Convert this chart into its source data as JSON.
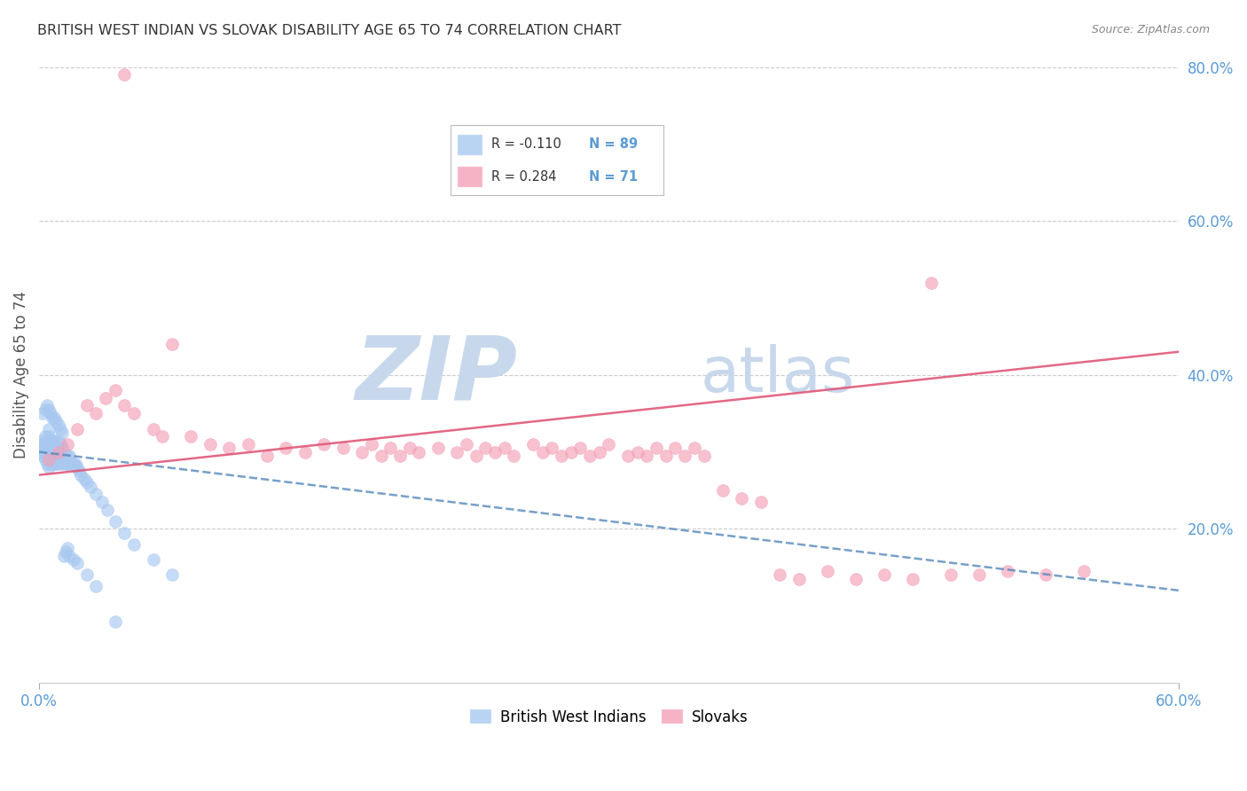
{
  "title": "BRITISH WEST INDIAN VS SLOVAK DISABILITY AGE 65 TO 74 CORRELATION CHART",
  "source": "Source: ZipAtlas.com",
  "ylabel": "Disability Age 65 to 74",
  "xmin": 0.0,
  "xmax": 0.6,
  "ymin": 0.0,
  "ymax": 0.8,
  "right_yticks": [
    0.2,
    0.4,
    0.6,
    0.8
  ],
  "right_yticklabels": [
    "20.0%",
    "40.0%",
    "60.0%",
    "80.0%"
  ],
  "xtick_positions": [
    0.0,
    0.6
  ],
  "xtick_labels": [
    "0.0%",
    "60.0%"
  ],
  "blue_color": "#A8C8F0",
  "pink_color": "#F4A0B8",
  "blue_line_color": "#5588BB",
  "pink_line_color": "#E05878",
  "title_color": "#333333",
  "axis_label_color": "#555555",
  "tick_label_color": "#5B9BD5",
  "grid_color": "#CCCCCC",
  "watermark_zip": "ZIP",
  "watermark_atlas": "atlas",
  "watermark_color": "#C8D8EC",
  "legend_label_blue": "British West Indians",
  "legend_label_pink": "Slovaks",
  "blue_R": -0.11,
  "blue_N": 89,
  "pink_R": 0.284,
  "pink_N": 71,
  "blue_line_x0": 0.0,
  "blue_line_y0": 0.3,
  "blue_line_x1": 0.6,
  "blue_line_y1": 0.12,
  "pink_line_x0": 0.0,
  "pink_line_y0": 0.27,
  "pink_line_x1": 0.6,
  "pink_line_y1": 0.43,
  "blue_scatter_x": [
    0.001,
    0.001,
    0.002,
    0.002,
    0.002,
    0.003,
    0.003,
    0.003,
    0.003,
    0.004,
    0.004,
    0.004,
    0.004,
    0.005,
    0.005,
    0.005,
    0.005,
    0.005,
    0.005,
    0.006,
    0.006,
    0.006,
    0.006,
    0.007,
    0.007,
    0.007,
    0.007,
    0.008,
    0.008,
    0.008,
    0.008,
    0.009,
    0.009,
    0.009,
    0.01,
    0.01,
    0.01,
    0.01,
    0.011,
    0.011,
    0.011,
    0.012,
    0.012,
    0.012,
    0.013,
    0.013,
    0.014,
    0.014,
    0.015,
    0.015,
    0.016,
    0.016,
    0.017,
    0.018,
    0.019,
    0.02,
    0.021,
    0.022,
    0.024,
    0.025,
    0.027,
    0.03,
    0.033,
    0.036,
    0.04,
    0.045,
    0.05,
    0.06,
    0.07,
    0.002,
    0.003,
    0.004,
    0.005,
    0.006,
    0.007,
    0.008,
    0.009,
    0.01,
    0.011,
    0.012,
    0.013,
    0.014,
    0.015,
    0.016,
    0.018,
    0.02,
    0.025,
    0.03,
    0.04
  ],
  "blue_scatter_y": [
    0.3,
    0.31,
    0.295,
    0.305,
    0.315,
    0.29,
    0.3,
    0.31,
    0.32,
    0.285,
    0.295,
    0.305,
    0.315,
    0.28,
    0.29,
    0.3,
    0.31,
    0.32,
    0.33,
    0.285,
    0.295,
    0.305,
    0.315,
    0.285,
    0.295,
    0.305,
    0.315,
    0.285,
    0.295,
    0.305,
    0.315,
    0.285,
    0.295,
    0.305,
    0.285,
    0.295,
    0.305,
    0.315,
    0.29,
    0.3,
    0.31,
    0.285,
    0.295,
    0.305,
    0.29,
    0.3,
    0.285,
    0.295,
    0.285,
    0.295,
    0.285,
    0.295,
    0.285,
    0.285,
    0.285,
    0.28,
    0.275,
    0.27,
    0.265,
    0.26,
    0.255,
    0.245,
    0.235,
    0.225,
    0.21,
    0.195,
    0.18,
    0.16,
    0.14,
    0.35,
    0.355,
    0.36,
    0.355,
    0.35,
    0.345,
    0.345,
    0.34,
    0.335,
    0.33,
    0.325,
    0.165,
    0.17,
    0.175,
    0.165,
    0.16,
    0.155,
    0.14,
    0.125,
    0.08
  ],
  "pink_scatter_x": [
    0.005,
    0.01,
    0.015,
    0.02,
    0.025,
    0.03,
    0.035,
    0.04,
    0.045,
    0.05,
    0.06,
    0.065,
    0.07,
    0.08,
    0.09,
    0.1,
    0.11,
    0.12,
    0.13,
    0.14,
    0.15,
    0.16,
    0.17,
    0.175,
    0.18,
    0.185,
    0.19,
    0.195,
    0.2,
    0.21,
    0.22,
    0.225,
    0.23,
    0.235,
    0.24,
    0.245,
    0.25,
    0.26,
    0.265,
    0.27,
    0.275,
    0.28,
    0.285,
    0.29,
    0.295,
    0.3,
    0.31,
    0.315,
    0.32,
    0.325,
    0.33,
    0.335,
    0.34,
    0.345,
    0.35,
    0.36,
    0.37,
    0.38,
    0.39,
    0.4,
    0.415,
    0.43,
    0.445,
    0.46,
    0.47,
    0.48,
    0.495,
    0.51,
    0.53,
    0.55,
    0.045
  ],
  "pink_scatter_y": [
    0.29,
    0.3,
    0.31,
    0.33,
    0.36,
    0.35,
    0.37,
    0.38,
    0.36,
    0.35,
    0.33,
    0.32,
    0.44,
    0.32,
    0.31,
    0.305,
    0.31,
    0.295,
    0.305,
    0.3,
    0.31,
    0.305,
    0.3,
    0.31,
    0.295,
    0.305,
    0.295,
    0.305,
    0.3,
    0.305,
    0.3,
    0.31,
    0.295,
    0.305,
    0.3,
    0.305,
    0.295,
    0.31,
    0.3,
    0.305,
    0.295,
    0.3,
    0.305,
    0.295,
    0.3,
    0.31,
    0.295,
    0.3,
    0.295,
    0.305,
    0.295,
    0.305,
    0.295,
    0.305,
    0.295,
    0.25,
    0.24,
    0.235,
    0.14,
    0.135,
    0.145,
    0.135,
    0.14,
    0.135,
    0.52,
    0.14,
    0.14,
    0.145,
    0.14,
    0.145,
    0.79
  ]
}
